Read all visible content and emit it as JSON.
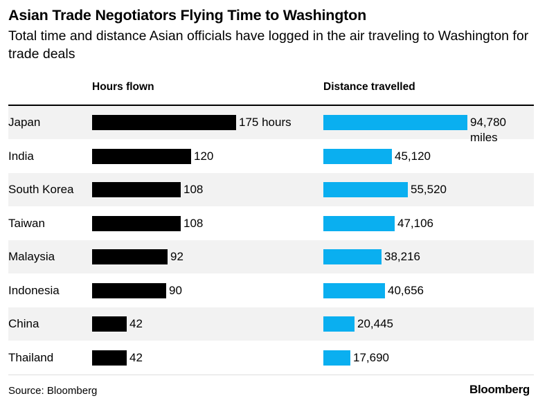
{
  "title": "Asian Trade Negotiators Flying Time to Washington",
  "subtitle": "Total time and distance Asian officials have logged in the air traveling to Washington for trade deals",
  "source": "Source: Bloomberg",
  "brand": "Bloomberg",
  "colors": {
    "hours_bar": "#000000",
    "distance_bar": "#0aaff0",
    "row_shade": "#f2f2f2"
  },
  "chart_data": {
    "type": "bar",
    "orientation": "horizontal",
    "categories": [
      "Japan",
      "India",
      "South Korea",
      "Taiwan",
      "Malaysia",
      "Indonesia",
      "China",
      "Thailand"
    ],
    "series": [
      {
        "name": "Hours flown",
        "values": [
          175,
          120,
          108,
          108,
          92,
          90,
          42,
          42
        ],
        "labels": [
          "175 hours",
          "120",
          "108",
          "108",
          "92",
          "90",
          "42",
          "42"
        ]
      },
      {
        "name": "Distance travelled",
        "values": [
          94780,
          45120,
          55520,
          47106,
          38216,
          40656,
          20445,
          17690
        ],
        "labels": [
          "94,780 miles",
          "45,120",
          "55,520",
          "47,106",
          "38,216",
          "40,656",
          "20,445",
          "17,690"
        ]
      }
    ]
  }
}
